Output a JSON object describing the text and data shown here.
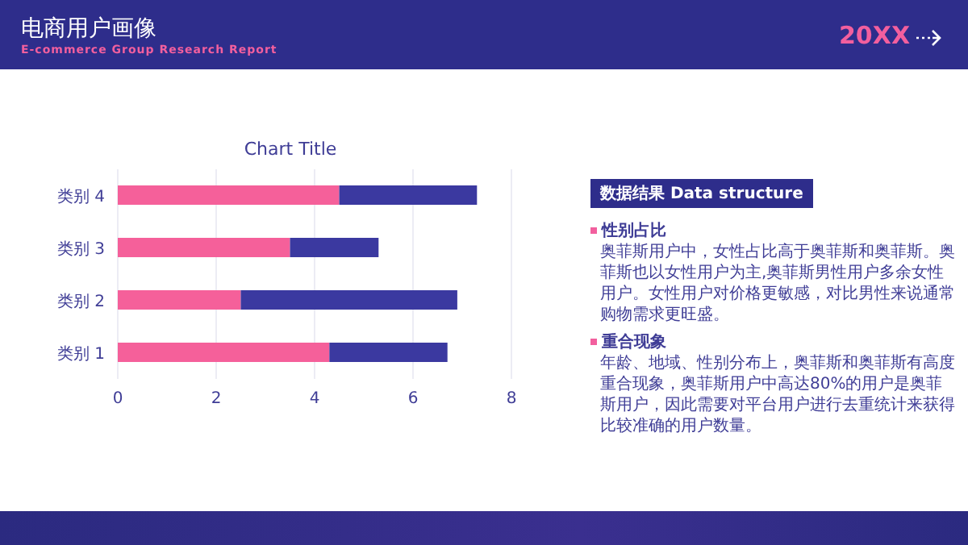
{
  "chart_data": {
    "type": "bar",
    "orientation": "horizontal",
    "stacked": true,
    "title": "电商用户画像",
    "subtitle": "E-commerce Group Research Report",
    "categories": [
      "类别 4",
      "类别 3",
      "类别 2",
      "类别 1"
    ],
    "series": [
      {
        "color": "#f5609a",
        "values": [
          4.5,
          3.5,
          2.5,
          4.3
        ]
      },
      {
        "color": "#3b39a0",
        "values": [
          2.8,
          1.8,
          4.4,
          2.4
        ]
      }
    ],
    "xlim": [
      0,
      8
    ],
    "xticks": [
      0,
      2,
      4,
      6,
      8
    ],
    "grid": "x",
    "legend": false,
    "annotations": [
      "Chart Title",
      "20XX",
      "数据结果 Data structure",
      "性别占比",
      "奥菲斯用户中，女性占比高于奥菲斯和奥菲斯。奥菲斯也以女性用户为主,奥菲斯男性用户多余女性用户。女性用户对价格更敏感，对比男性来说通常购物需求更旺盛。",
      "重合现象",
      "年龄、地域、性别分布上，奥菲斯和奥菲斯有高度重合现象，奥菲斯用户中高达80%的用户是奥菲斯用户，因此需要对平台用户进行去重统计来获得比较准确的用户数量。"
    ]
  }
}
